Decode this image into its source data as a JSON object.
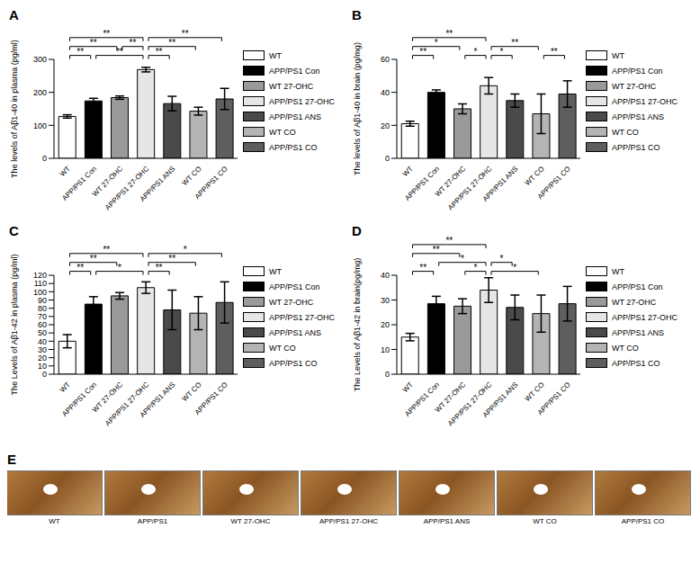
{
  "chart_data": [
    {
      "type": "bar",
      "title": "A",
      "y_label": "The levels of Aβ1-40 in plasma (pg/ml)",
      "legend": "right",
      "categories": [
        "WT",
        "APP/PS1 Con",
        "WT 27-OHC",
        "APP/PS1 27-OHC",
        "APP/PS1 ANS",
        "WT CO",
        "APP/PS1 CO"
      ],
      "colors": [
        "#ffffff",
        "#000000",
        "#9a9a9a",
        "#e6e6e6",
        "#4a4a4a",
        "#b4b4b4",
        "#5e5e5e"
      ],
      "values": [
        127,
        174,
        184,
        269,
        166,
        143,
        180
      ],
      "errors": [
        5,
        8,
        5,
        7,
        22,
        12,
        32
      ],
      "ylim": [
        0,
        300
      ],
      "yticks": [
        0,
        100,
        200,
        300
      ],
      "annotations": [
        {
          "from": 0,
          "to": 3,
          "label": "**"
        },
        {
          "from": 3,
          "to": 6,
          "label": "**"
        },
        {
          "from": 0,
          "to": 2,
          "label": "**"
        },
        {
          "from": 2,
          "to": 3,
          "label": "**"
        },
        {
          "from": 3,
          "to": 5,
          "label": "**"
        },
        {
          "from": 0,
          "to": 1,
          "label": "**"
        },
        {
          "from": 1,
          "to": 3,
          "label": "**"
        },
        {
          "from": 3,
          "to": 4,
          "label": "**"
        }
      ]
    },
    {
      "type": "bar",
      "title": "B",
      "y_label": "The levels of Aβ1-40  in brain (pg/mg)",
      "legend": "right",
      "categories": [
        "WT",
        "APP/PS1 Con",
        "WT 27-OHC",
        "APP/PS1 27-OHC",
        "APP/PS1 ANS",
        "WT CO",
        "APP/PS1 CO"
      ],
      "colors": [
        "#ffffff",
        "#000000",
        "#9a9a9a",
        "#e6e6e6",
        "#4a4a4a",
        "#b4b4b4",
        "#5e5e5e"
      ],
      "values": [
        21,
        40,
        30,
        44,
        35,
        27,
        39
      ],
      "errors": [
        1.5,
        1.5,
        3,
        5,
        4,
        12,
        8
      ],
      "ylim": [
        0,
        60
      ],
      "yticks": [
        0,
        20,
        40,
        60
      ],
      "annotations": [
        {
          "from": 0,
          "to": 3,
          "label": "**"
        },
        {
          "from": 0,
          "to": 2,
          "label": "*"
        },
        {
          "from": 3,
          "to": 5,
          "label": "**"
        },
        {
          "from": 0,
          "to": 1,
          "label": "**"
        },
        {
          "from": 2,
          "to": 3,
          "label": "*"
        },
        {
          "from": 3,
          "to": 4,
          "label": "*"
        },
        {
          "from": 5,
          "to": 6,
          "label": "**"
        }
      ]
    },
    {
      "type": "bar",
      "title": "C",
      "y_label": "The Levels of  Aβ1-42 in plasma (pg/ml)",
      "legend": "right",
      "categories": [
        "WT",
        "APP/PS1 Con",
        "WT 27-OHC",
        "APP/PS1 27-OHC",
        "APP/PS1 ANS",
        "WT CO",
        "APP/PS1 CO"
      ],
      "colors": [
        "#ffffff",
        "#000000",
        "#9a9a9a",
        "#e6e6e6",
        "#4a4a4a",
        "#b4b4b4",
        "#5e5e5e"
      ],
      "values": [
        40,
        85,
        95,
        105,
        78,
        74,
        87
      ],
      "errors": [
        8,
        9,
        4,
        7,
        24,
        20,
        25
      ],
      "ylim": [
        0,
        120
      ],
      "yticks": [
        0,
        10,
        20,
        30,
        40,
        50,
        60,
        70,
        80,
        90,
        100,
        110,
        120
      ],
      "annotations": [
        {
          "from": 0,
          "to": 3,
          "label": "**"
        },
        {
          "from": 3,
          "to": 6,
          "label": "*"
        },
        {
          "from": 0,
          "to": 2,
          "label": "**"
        },
        {
          "from": 3,
          "to": 5,
          "label": "**"
        },
        {
          "from": 0,
          "to": 1,
          "label": "**"
        },
        {
          "from": 1,
          "to": 3,
          "label": "*"
        },
        {
          "from": 3,
          "to": 4,
          "label": "**"
        }
      ]
    },
    {
      "type": "bar",
      "title": "D",
      "y_label": "The Levels of  Aβ1-42 in brain(pg/mg)",
      "legend": "right",
      "categories": [
        "WT",
        "APP/PS1 Con",
        "WT 27-OHC",
        "APP/PS1 27-OHC",
        "APP/PS1 ANS",
        "WT CO",
        "APP/PS1 CO"
      ],
      "colors": [
        "#ffffff",
        "#000000",
        "#9a9a9a",
        "#e6e6e6",
        "#4a4a4a",
        "#b4b4b4",
        "#5e5e5e"
      ],
      "values": [
        15,
        28.5,
        27.5,
        34,
        27,
        24.5,
        28.5
      ],
      "errors": [
        1.5,
        3,
        3,
        5,
        5,
        7.5,
        7
      ],
      "ylim": [
        0,
        40
      ],
      "yticks": [
        0,
        10,
        20,
        30,
        40
      ],
      "annotations": [
        {
          "from": 0,
          "to": 3,
          "label": "**"
        },
        {
          "from": 0,
          "to": 2,
          "label": "**"
        },
        {
          "from": 1,
          "to": 3,
          "label": "*"
        },
        {
          "from": 0,
          "to": 1,
          "label": "**"
        },
        {
          "from": 2,
          "to": 3,
          "label": "*"
        },
        {
          "from": 3,
          "to": 4,
          "label": "*"
        },
        {
          "from": 3,
          "to": 5,
          "label": "*"
        }
      ]
    }
  ],
  "image_panel": {
    "title": "E",
    "captions": [
      "WT",
      "APP/PS1",
      "WT 27-OHC",
      "APP/PS1 27-OHC",
      "APP/PS1 ANS",
      "WT CO",
      "APP/PS1 CO"
    ]
  }
}
